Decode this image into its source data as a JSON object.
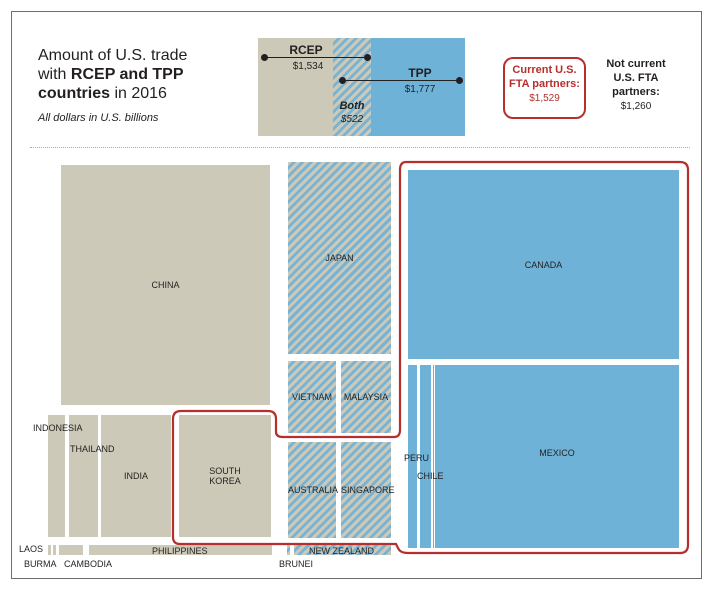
{
  "title": {
    "line1": "Amount of U.S. trade",
    "line2_pre": "with ",
    "line2_bold": "RCEP and TPP",
    "line3_bold": "countries",
    "line3_post": " in 2016",
    "subtitle": "All dollars in U.S. billions"
  },
  "legend": {
    "rcep": {
      "label": "RCEP",
      "value": "$1,534"
    },
    "tpp": {
      "label": "TPP",
      "value": "$1,777"
    },
    "both": {
      "label": "Both",
      "value": "$522"
    },
    "fta": {
      "label_line1": "Current U.S.",
      "label_line2": "FTA partners:",
      "value": "$1,529"
    },
    "non_fta": {
      "label_line1": "Not current",
      "label_line2": "U.S. FTA",
      "label_line3": "partners:",
      "value": "$1,260"
    }
  },
  "countries": {
    "china": "CHINA",
    "japan": "JAPAN",
    "canada": "CANADA",
    "mexico": "MEXICO",
    "vietnam": "VIETNAM",
    "malaysia": "MALAYSIA",
    "australia": "AUSTRALIA",
    "singapore": "SINGAPORE",
    "indonesia": "INDONESIA",
    "thailand": "THAILAND",
    "india": "INDIA",
    "south_korea_1": "SOUTH",
    "south_korea_2": "KOREA",
    "peru": "PERU",
    "chile": "CHILE",
    "laos": "LAOS",
    "burma": "BURMA",
    "cambodia": "CAMBODIA",
    "philippines": "PHILIPPINES",
    "new_zealand": "NEW ZEALAND",
    "brunei": "BRUNEI"
  },
  "colors": {
    "rcep_only": "#ccc9b8",
    "tpp_only": "#6fb2d7",
    "both_hatch": "#79b3d3",
    "fta_outline": "#b5302c"
  }
}
